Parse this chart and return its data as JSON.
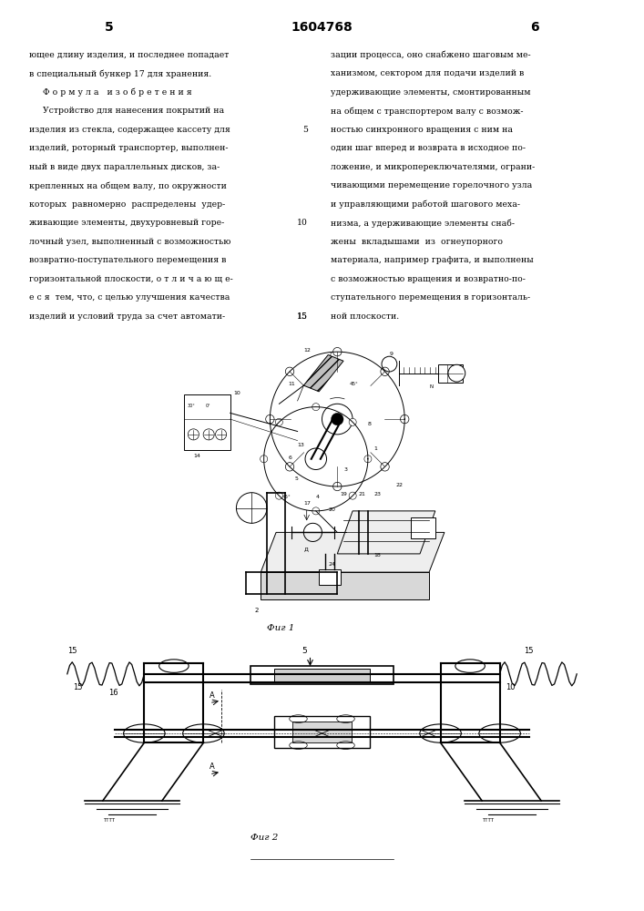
{
  "page_number_left": "5",
  "page_number_center": "1604768",
  "page_number_right": "6",
  "bg_color": "#ffffff",
  "text_color": "#000000",
  "fig1_caption": "Фиг 1",
  "fig2_caption": "Фиг 2",
  "left_col": [
    "ющее длину изделия, и последнее попадает",
    "в специальный бункер 17 для хранения.",
    "     Ф о р м у л а   и з о б р е т е н и я",
    "     Устройство для нанесения покрытий на",
    "изделия из стекла, содержащее кассету для",
    "изделий, роторный транспортер, выполнен-",
    "ный в виде двух параллельных дисков, за-",
    "крепленных на общем валу, по окружности",
    "которых  равномерно  распределены  удер-",
    "живающие элементы, двухуровневый горе-",
    "лочный узел, выполненный с возможностью",
    "возвратно-поступательного перемещения в",
    "горизонтальной плоскости, о т л и ч а ю щ е-",
    "е с я  тем, что, с целью улучшения качества",
    "изделий и условий труда за счет автомати-"
  ],
  "left_nums": {
    "4": "5",
    "9": "10",
    "14": "15"
  },
  "right_col": [
    "зации процесса, оно снабжено шаговым ме-",
    "ханизмом, сектором для подачи изделий в",
    "удерживающие элементы, смонтированным",
    "на общем с транспортером валу с возмож-",
    "ностью синхронного вращения с ним на",
    "один шаг вперед и возврата в исходное по-",
    "ложение, и микропереключателями, ограни-",
    "чивающими перемещение горелочного узла",
    "и управляющими работой шагового меха-",
    "низма, а удерживающие элементы снаб-",
    "жены  вкладышами  из  огнеупорного",
    "материала, например графита, и выполнены",
    "с возможностью вращения и возвратно-по-",
    "ступательного перемещения в горизонталь-",
    "ной плоскости."
  ]
}
